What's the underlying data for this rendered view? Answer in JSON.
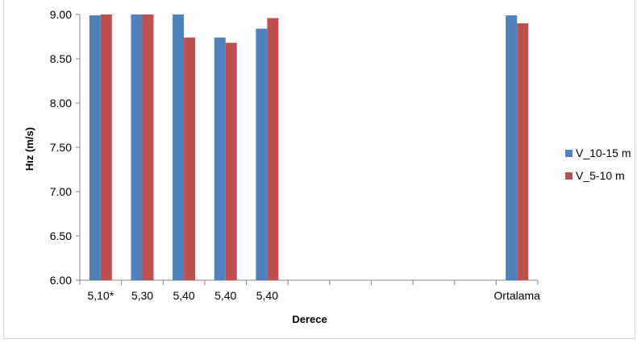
{
  "chart_data": {
    "type": "bar",
    "title": "",
    "xlabel": "Derece",
    "ylabel": "Hız (m/s)",
    "ylim": [
      6.0,
      9.0
    ],
    "yticks": [
      "6.00",
      "6.50",
      "7.00",
      "7.50",
      "8.00",
      "8.50",
      "9.00"
    ],
    "ytick_values": [
      6.0,
      6.5,
      7.0,
      7.5,
      8.0,
      8.5,
      9.0
    ],
    "categories": [
      "5,10*",
      "5,30",
      "5,40",
      "5,40",
      "5,40",
      "",
      "",
      "",
      "",
      "",
      "Ortalama"
    ],
    "series": [
      {
        "name": "V_10-15 m",
        "color": "#4f81bd",
        "values": [
          8.99,
          9.0,
          9.0,
          8.74,
          8.84,
          null,
          null,
          null,
          null,
          null,
          8.99
        ]
      },
      {
        "name": "V_5-10 m",
        "color": "#c0504d",
        "values": [
          9.0,
          9.0,
          8.74,
          8.68,
          8.96,
          null,
          null,
          null,
          null,
          null,
          8.9
        ]
      }
    ],
    "grid": false,
    "legend_position": "right"
  }
}
